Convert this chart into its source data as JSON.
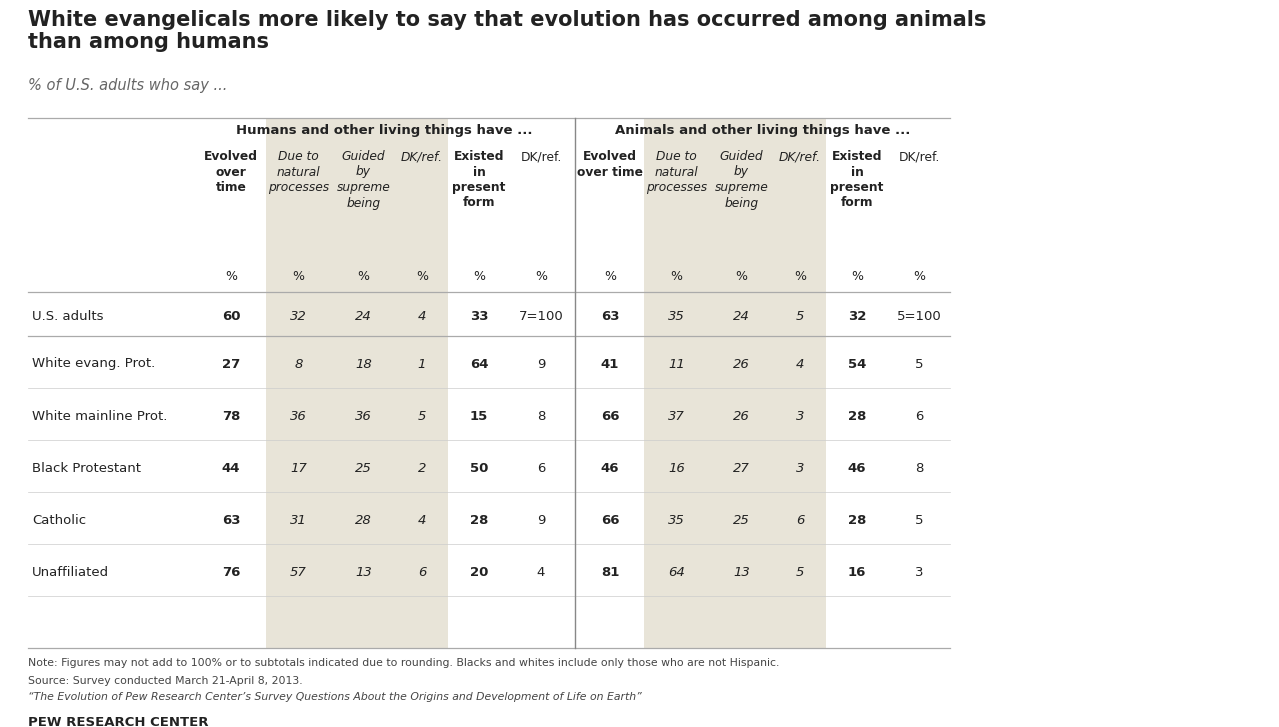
{
  "title_line1": "White evangelicals more likely to say that evolution has occurred among animals",
  "title_line2": "than among humans",
  "subtitle": "% of U.S. adults who say ...",
  "section1_header": "Humans and other living things have ...",
  "section2_header": "Animals and other living things have ...",
  "col_headers_h": [
    "Evolved\nover\ntime",
    "Due to\nnatural\nprocesses",
    "Guided\nby\nsupreme\nbeing",
    "DK/ref.",
    "Existed\nin\npresent\nform",
    "DK/ref."
  ],
  "col_headers_a": [
    "Evolved\nover time",
    "Due to\nnatural\nprocesses",
    "Guided\nby\nsupreme\nbeing",
    "DK/ref.",
    "Existed\nin\npresent\nform",
    "DK/ref."
  ],
  "rows": [
    {
      "label": "U.S. adults",
      "h": [
        "60",
        "32",
        "24",
        "4",
        "33",
        "7=100"
      ],
      "a": [
        "63",
        "35",
        "24",
        "5",
        "32",
        "5=100"
      ]
    },
    {
      "label": "White evang. Prot.",
      "h": [
        "27",
        "8",
        "18",
        "1",
        "64",
        "9"
      ],
      "a": [
        "41",
        "11",
        "26",
        "4",
        "54",
        "5"
      ]
    },
    {
      "label": "White mainline Prot.",
      "h": [
        "78",
        "36",
        "36",
        "5",
        "15",
        "8"
      ],
      "a": [
        "66",
        "37",
        "26",
        "3",
        "28",
        "6"
      ]
    },
    {
      "label": "Black Protestant",
      "h": [
        "44",
        "17",
        "25",
        "2",
        "50",
        "6"
      ],
      "a": [
        "46",
        "16",
        "27",
        "3",
        "46",
        "8"
      ]
    },
    {
      "label": "Catholic",
      "h": [
        "63",
        "31",
        "28",
        "4",
        "28",
        "9"
      ],
      "a": [
        "66",
        "35",
        "25",
        "6",
        "28",
        "5"
      ]
    },
    {
      "label": "Unaffiliated",
      "h": [
        "76",
        "57",
        "13",
        "6",
        "20",
        "4"
      ],
      "a": [
        "81",
        "64",
        "13",
        "5",
        "16",
        "3"
      ]
    }
  ],
  "note1": "Note: Figures may not add to 100% or to subtotals indicated due to rounding. Blacks and whites include only those who are not Hispanic.",
  "note2": "Source: Survey conducted March 21-April 8, 2013.",
  "note3": "“The Evolution of Pew Research Center’s Survey Questions About the Origins and Development of Life on Earth”",
  "source_label": "PEW RESEARCH CENTER",
  "bg_color": "#e8e4d8",
  "white_bg": "#ffffff",
  "text_dark": "#222222",
  "text_gray": "#555555",
  "line_color": "#aaaaaa"
}
